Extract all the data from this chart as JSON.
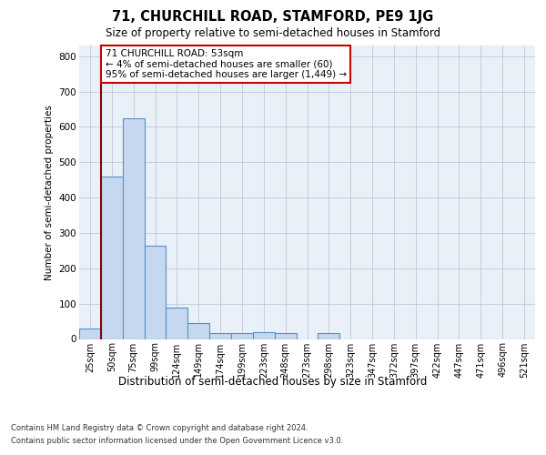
{
  "suptitle": "71, CHURCHILL ROAD, STAMFORD, PE9 1JG",
  "title": "Size of property relative to semi-detached houses in Stamford",
  "xlabel": "Distribution of semi-detached houses by size in Stamford",
  "ylabel": "Number of semi-detached properties",
  "categories": [
    "25sqm",
    "50sqm",
    "75sqm",
    "99sqm",
    "124sqm",
    "149sqm",
    "174sqm",
    "199sqm",
    "223sqm",
    "248sqm",
    "273sqm",
    "298sqm",
    "323sqm",
    "347sqm",
    "372sqm",
    "397sqm",
    "422sqm",
    "447sqm",
    "471sqm",
    "496sqm",
    "521sqm"
  ],
  "values": [
    30,
    460,
    625,
    265,
    90,
    45,
    18,
    18,
    20,
    18,
    0,
    18,
    0,
    0,
    0,
    0,
    0,
    0,
    0,
    0,
    0
  ],
  "bar_color": "#c5d8ef",
  "bar_edge_color": "#5b8fca",
  "property_line_color": "#8b0000",
  "annotation_text": "71 CHURCHILL ROAD: 53sqm\n← 4% of semi-detached houses are smaller (60)\n95% of semi-detached houses are larger (1,449) →",
  "annotation_box_color": "#ffffff",
  "annotation_box_edge_color": "#cc0000",
  "ylim": [
    0,
    830
  ],
  "yticks": [
    0,
    100,
    200,
    300,
    400,
    500,
    600,
    700,
    800
  ],
  "background_color": "#eaf0f8",
  "grid_color": "#c0c8d8",
  "footer_line1": "Contains HM Land Registry data © Crown copyright and database right 2024.",
  "footer_line2": "Contains public sector information licensed under the Open Government Licence v3.0."
}
